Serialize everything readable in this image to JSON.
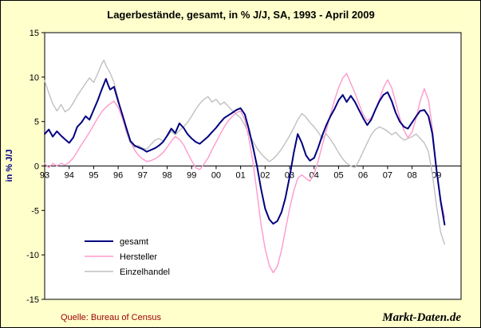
{
  "source": "Quelle: Bureau of Census",
  "watermark": "Markt-Daten.de",
  "chart_data": {
    "type": "line",
    "title": "Lagerbestände, gesamt, in % J/J, SA, 1993 - April 2009",
    "xlabel": "",
    "ylabel": "in % J/J",
    "ylim": [
      -15,
      15
    ],
    "xlim": [
      1993,
      2010
    ],
    "yticks": [
      -15,
      -10,
      -5,
      0,
      5,
      10,
      15
    ],
    "xticks": [
      1993,
      1994,
      1995,
      1996,
      1997,
      1998,
      1999,
      2000,
      2001,
      2002,
      2003,
      2004,
      2005,
      2006,
      2007,
      2008,
      2009
    ],
    "xtick_labels": [
      "93",
      "94",
      "95",
      "96",
      "97",
      "98",
      "99",
      "00",
      "01",
      "02",
      "03",
      "04",
      "05",
      "06",
      "07",
      "08",
      "09"
    ],
    "grid": false,
    "legend_position": "inside-bottom-left",
    "x_unit": "decimal year (monthly data, Jan 1993 - Apr 2009)",
    "colors": {
      "figure_bg": "#FFFFCC",
      "plot_bg": "#FFFFFF",
      "axis": "#000000"
    },
    "series": [
      {
        "name": "gesamt",
        "color": "#000080",
        "width": 2,
        "points": [
          [
            1993.0,
            3.6
          ],
          [
            1993.17,
            4.1
          ],
          [
            1993.33,
            3.3
          ],
          [
            1993.5,
            3.9
          ],
          [
            1993.67,
            3.4
          ],
          [
            1993.83,
            3.0
          ],
          [
            1994.0,
            2.6
          ],
          [
            1994.17,
            3.2
          ],
          [
            1994.33,
            4.4
          ],
          [
            1994.5,
            4.9
          ],
          [
            1994.67,
            5.6
          ],
          [
            1994.83,
            5.2
          ],
          [
            1995.0,
            6.3
          ],
          [
            1995.17,
            7.4
          ],
          [
            1995.33,
            8.6
          ],
          [
            1995.5,
            9.8
          ],
          [
            1995.58,
            9.2
          ],
          [
            1995.67,
            8.6
          ],
          [
            1995.83,
            8.9
          ],
          [
            1996.0,
            7.3
          ],
          [
            1996.17,
            5.8
          ],
          [
            1996.33,
            4.3
          ],
          [
            1996.5,
            2.8
          ],
          [
            1996.67,
            2.3
          ],
          [
            1996.83,
            2.1
          ],
          [
            1997.0,
            1.9
          ],
          [
            1997.17,
            1.6
          ],
          [
            1997.33,
            1.8
          ],
          [
            1997.5,
            2.0
          ],
          [
            1997.67,
            2.3
          ],
          [
            1997.83,
            2.7
          ],
          [
            1998.0,
            3.4
          ],
          [
            1998.17,
            4.2
          ],
          [
            1998.33,
            3.7
          ],
          [
            1998.5,
            4.8
          ],
          [
            1998.67,
            4.3
          ],
          [
            1998.83,
            3.6
          ],
          [
            1999.0,
            3.1
          ],
          [
            1999.17,
            2.7
          ],
          [
            1999.33,
            2.5
          ],
          [
            1999.5,
            2.9
          ],
          [
            1999.67,
            3.3
          ],
          [
            1999.83,
            3.8
          ],
          [
            2000.0,
            4.3
          ],
          [
            2000.17,
            4.9
          ],
          [
            2000.33,
            5.4
          ],
          [
            2000.5,
            5.7
          ],
          [
            2000.67,
            6.0
          ],
          [
            2000.83,
            6.3
          ],
          [
            2001.0,
            6.5
          ],
          [
            2001.17,
            5.8
          ],
          [
            2001.33,
            4.2
          ],
          [
            2001.5,
            2.2
          ],
          [
            2001.67,
            0.0
          ],
          [
            2001.83,
            -2.5
          ],
          [
            2002.0,
            -4.8
          ],
          [
            2002.17,
            -6.0
          ],
          [
            2002.33,
            -6.5
          ],
          [
            2002.5,
            -6.2
          ],
          [
            2002.67,
            -5.2
          ],
          [
            2002.83,
            -3.6
          ],
          [
            2003.0,
            -1.2
          ],
          [
            2003.17,
            1.5
          ],
          [
            2003.33,
            3.6
          ],
          [
            2003.5,
            2.6
          ],
          [
            2003.67,
            1.2
          ],
          [
            2003.83,
            0.6
          ],
          [
            2004.0,
            0.9
          ],
          [
            2004.17,
            2.1
          ],
          [
            2004.33,
            3.4
          ],
          [
            2004.5,
            4.6
          ],
          [
            2004.67,
            5.6
          ],
          [
            2004.83,
            6.4
          ],
          [
            2005.0,
            7.4
          ],
          [
            2005.17,
            8.0
          ],
          [
            2005.33,
            7.2
          ],
          [
            2005.5,
            7.9
          ],
          [
            2005.67,
            7.2
          ],
          [
            2005.83,
            6.3
          ],
          [
            2006.0,
            5.4
          ],
          [
            2006.17,
            4.6
          ],
          [
            2006.33,
            5.2
          ],
          [
            2006.5,
            6.3
          ],
          [
            2006.67,
            7.3
          ],
          [
            2006.83,
            8.0
          ],
          [
            2007.0,
            8.3
          ],
          [
            2007.17,
            7.3
          ],
          [
            2007.33,
            6.0
          ],
          [
            2007.5,
            5.0
          ],
          [
            2007.67,
            4.4
          ],
          [
            2007.83,
            4.2
          ],
          [
            2008.0,
            4.9
          ],
          [
            2008.17,
            5.6
          ],
          [
            2008.33,
            6.2
          ],
          [
            2008.5,
            6.3
          ],
          [
            2008.67,
            5.6
          ],
          [
            2008.83,
            3.6
          ],
          [
            2009.0,
            -0.5
          ],
          [
            2009.17,
            -4.0
          ],
          [
            2009.33,
            -6.6
          ]
        ]
      },
      {
        "name": "Hersteller",
        "color": "#FF99CC",
        "width": 1.4,
        "points": [
          [
            1993.0,
            0.3
          ],
          [
            1993.17,
            -0.2
          ],
          [
            1993.33,
            0.3
          ],
          [
            1993.5,
            0.0
          ],
          [
            1993.67,
            0.3
          ],
          [
            1993.83,
            0.1
          ],
          [
            1994.0,
            0.4
          ],
          [
            1994.17,
            0.9
          ],
          [
            1994.33,
            1.6
          ],
          [
            1994.5,
            2.4
          ],
          [
            1994.67,
            3.1
          ],
          [
            1994.83,
            3.8
          ],
          [
            1995.0,
            4.6
          ],
          [
            1995.17,
            5.4
          ],
          [
            1995.33,
            6.1
          ],
          [
            1995.5,
            6.6
          ],
          [
            1995.67,
            7.0
          ],
          [
            1995.83,
            7.3
          ],
          [
            1996.0,
            6.6
          ],
          [
            1996.17,
            5.4
          ],
          [
            1996.33,
            4.0
          ],
          [
            1996.5,
            2.8
          ],
          [
            1996.67,
            1.8
          ],
          [
            1996.83,
            1.2
          ],
          [
            1997.0,
            0.8
          ],
          [
            1997.17,
            0.5
          ],
          [
            1997.33,
            0.6
          ],
          [
            1997.5,
            0.8
          ],
          [
            1997.67,
            1.1
          ],
          [
            1997.83,
            1.5
          ],
          [
            1998.0,
            2.1
          ],
          [
            1998.17,
            2.8
          ],
          [
            1998.33,
            3.3
          ],
          [
            1998.5,
            3.0
          ],
          [
            1998.67,
            2.4
          ],
          [
            1998.83,
            1.5
          ],
          [
            1999.0,
            0.6
          ],
          [
            1999.17,
            -0.2
          ],
          [
            1999.33,
            -0.4
          ],
          [
            1999.5,
            0.2
          ],
          [
            1999.67,
            0.9
          ],
          [
            1999.83,
            1.8
          ],
          [
            2000.0,
            2.7
          ],
          [
            2000.17,
            3.6
          ],
          [
            2000.33,
            4.4
          ],
          [
            2000.5,
            5.1
          ],
          [
            2000.67,
            5.6
          ],
          [
            2000.83,
            6.0
          ],
          [
            2001.0,
            6.2
          ],
          [
            2001.17,
            5.2
          ],
          [
            2001.33,
            3.2
          ],
          [
            2001.5,
            0.5
          ],
          [
            2001.67,
            -3.0
          ],
          [
            2001.83,
            -6.5
          ],
          [
            2002.0,
            -9.3
          ],
          [
            2002.17,
            -11.2
          ],
          [
            2002.33,
            -12.0
          ],
          [
            2002.5,
            -11.3
          ],
          [
            2002.67,
            -9.5
          ],
          [
            2002.83,
            -7.2
          ],
          [
            2003.0,
            -4.8
          ],
          [
            2003.17,
            -2.8
          ],
          [
            2003.33,
            -1.4
          ],
          [
            2003.5,
            -1.0
          ],
          [
            2003.67,
            -1.4
          ],
          [
            2003.83,
            -1.7
          ],
          [
            2004.0,
            -0.9
          ],
          [
            2004.17,
            0.6
          ],
          [
            2004.33,
            2.3
          ],
          [
            2004.5,
            4.0
          ],
          [
            2004.67,
            5.8
          ],
          [
            2004.83,
            7.4
          ],
          [
            2005.0,
            8.8
          ],
          [
            2005.17,
            9.9
          ],
          [
            2005.33,
            10.4
          ],
          [
            2005.5,
            9.3
          ],
          [
            2005.67,
            8.2
          ],
          [
            2005.83,
            7.0
          ],
          [
            2006.0,
            5.8
          ],
          [
            2006.17,
            5.1
          ],
          [
            2006.33,
            5.4
          ],
          [
            2006.5,
            6.3
          ],
          [
            2006.67,
            7.5
          ],
          [
            2006.83,
            8.8
          ],
          [
            2007.0,
            9.7
          ],
          [
            2007.17,
            8.8
          ],
          [
            2007.33,
            7.2
          ],
          [
            2007.5,
            5.4
          ],
          [
            2007.67,
            4.0
          ],
          [
            2007.83,
            3.2
          ],
          [
            2008.0,
            3.8
          ],
          [
            2008.17,
            5.4
          ],
          [
            2008.33,
            7.3
          ],
          [
            2008.5,
            8.7
          ],
          [
            2008.67,
            7.4
          ],
          [
            2008.83,
            4.2
          ],
          [
            2009.0,
            -0.5
          ],
          [
            2009.17,
            -3.8
          ],
          [
            2009.33,
            -5.8
          ]
        ]
      },
      {
        "name": "Einzelhandel",
        "color": "#C0C0C0",
        "width": 1.4,
        "points": [
          [
            1993.0,
            9.6
          ],
          [
            1993.17,
            8.2
          ],
          [
            1993.33,
            7.0
          ],
          [
            1993.5,
            6.2
          ],
          [
            1993.67,
            6.9
          ],
          [
            1993.83,
            6.1
          ],
          [
            1994.0,
            6.4
          ],
          [
            1994.17,
            7.1
          ],
          [
            1994.33,
            7.9
          ],
          [
            1994.5,
            8.6
          ],
          [
            1994.67,
            9.3
          ],
          [
            1994.83,
            9.9
          ],
          [
            1995.0,
            9.4
          ],
          [
            1995.17,
            10.4
          ],
          [
            1995.33,
            11.5
          ],
          [
            1995.42,
            11.9
          ],
          [
            1995.5,
            11.3
          ],
          [
            1995.67,
            10.5
          ],
          [
            1995.83,
            9.4
          ],
          [
            1996.0,
            7.6
          ],
          [
            1996.17,
            5.6
          ],
          [
            1996.33,
            3.8
          ],
          [
            1996.5,
            2.6
          ],
          [
            1996.67,
            2.1
          ],
          [
            1996.83,
            2.3
          ],
          [
            1997.0,
            2.0
          ],
          [
            1997.17,
            1.9
          ],
          [
            1997.33,
            2.4
          ],
          [
            1997.5,
            2.9
          ],
          [
            1997.67,
            3.1
          ],
          [
            1997.83,
            2.8
          ],
          [
            1998.0,
            3.3
          ],
          [
            1998.17,
            3.9
          ],
          [
            1998.33,
            3.5
          ],
          [
            1998.5,
            4.0
          ],
          [
            1998.67,
            4.4
          ],
          [
            1998.83,
            4.9
          ],
          [
            1999.0,
            5.6
          ],
          [
            1999.17,
            6.4
          ],
          [
            1999.33,
            7.0
          ],
          [
            1999.5,
            7.5
          ],
          [
            1999.67,
            7.8
          ],
          [
            1999.83,
            7.2
          ],
          [
            2000.0,
            7.5
          ],
          [
            2000.17,
            6.9
          ],
          [
            2000.33,
            7.2
          ],
          [
            2000.5,
            6.7
          ],
          [
            2000.67,
            6.2
          ],
          [
            2000.83,
            5.8
          ],
          [
            2001.0,
            5.4
          ],
          [
            2001.17,
            4.6
          ],
          [
            2001.33,
            3.7
          ],
          [
            2001.5,
            2.8
          ],
          [
            2001.67,
            2.0
          ],
          [
            2001.83,
            1.4
          ],
          [
            2002.0,
            0.9
          ],
          [
            2002.17,
            0.5
          ],
          [
            2002.33,
            0.8
          ],
          [
            2002.5,
            1.3
          ],
          [
            2002.67,
            1.9
          ],
          [
            2002.83,
            2.6
          ],
          [
            2003.0,
            3.4
          ],
          [
            2003.17,
            4.3
          ],
          [
            2003.33,
            5.2
          ],
          [
            2003.5,
            5.9
          ],
          [
            2003.67,
            5.5
          ],
          [
            2003.83,
            4.9
          ],
          [
            2004.0,
            4.4
          ],
          [
            2004.17,
            3.8
          ],
          [
            2004.33,
            3.1
          ],
          [
            2004.5,
            3.6
          ],
          [
            2004.67,
            3.0
          ],
          [
            2004.83,
            2.3
          ],
          [
            2005.0,
            1.5
          ],
          [
            2005.17,
            0.8
          ],
          [
            2005.33,
            0.3
          ],
          [
            2005.5,
            0.0
          ],
          [
            2005.67,
            -0.2
          ],
          [
            2005.83,
            0.6
          ],
          [
            2006.0,
            1.6
          ],
          [
            2006.17,
            2.6
          ],
          [
            2006.33,
            3.5
          ],
          [
            2006.5,
            4.1
          ],
          [
            2006.67,
            4.4
          ],
          [
            2006.83,
            4.2
          ],
          [
            2007.0,
            3.9
          ],
          [
            2007.17,
            3.5
          ],
          [
            2007.33,
            3.8
          ],
          [
            2007.5,
            3.3
          ],
          [
            2007.67,
            2.9
          ],
          [
            2007.83,
            3.1
          ],
          [
            2008.0,
            3.3
          ],
          [
            2008.17,
            3.6
          ],
          [
            2008.33,
            3.1
          ],
          [
            2008.5,
            2.6
          ],
          [
            2008.67,
            1.6
          ],
          [
            2008.83,
            -1.0
          ],
          [
            2009.0,
            -4.5
          ],
          [
            2009.17,
            -7.5
          ],
          [
            2009.33,
            -8.8
          ]
        ]
      }
    ]
  }
}
